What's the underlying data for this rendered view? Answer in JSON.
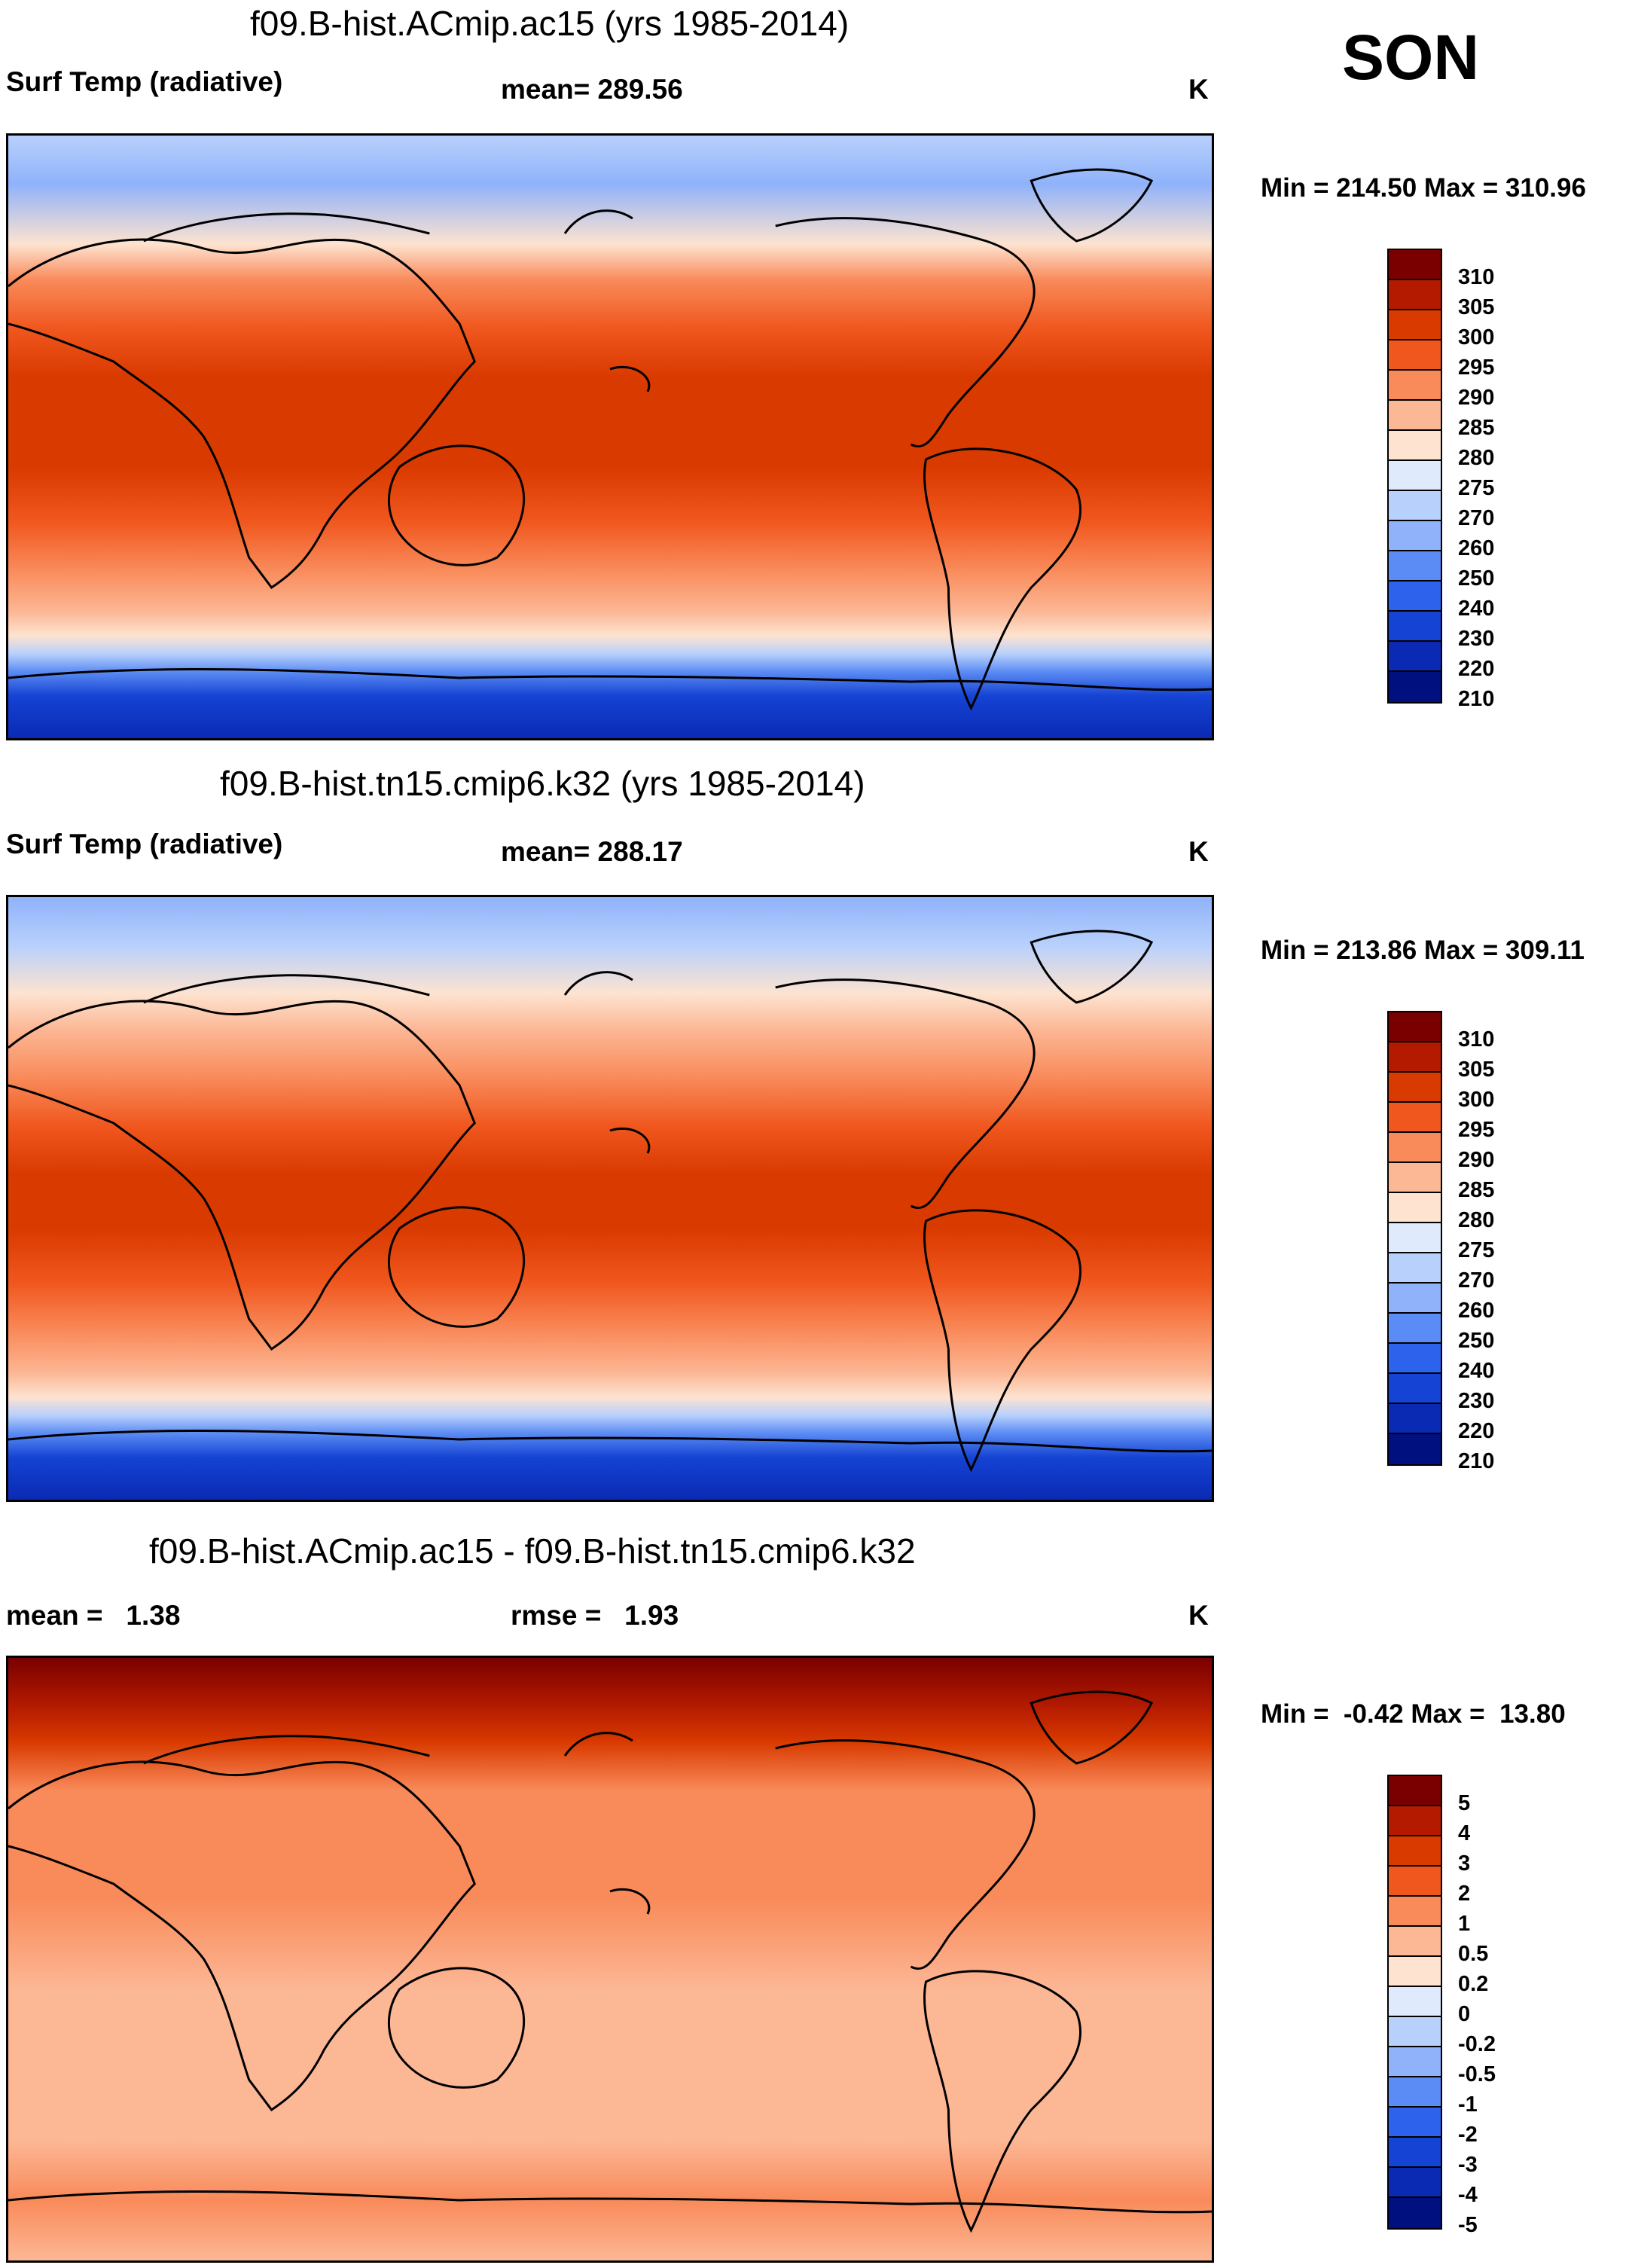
{
  "season": "SON",
  "panels": [
    {
      "id": "top",
      "title": "f09.B-hist.ACmip.ac15 (yrs 1985-2014)",
      "left_label": "Surf Temp (radiative)",
      "center_label": "mean= 289.56",
      "units": "K",
      "minmax": "Min = 214.50 Max = 310.96",
      "colorbar": {
        "colors": [
          "#7a0000",
          "#b31a00",
          "#d93a00",
          "#f0571e",
          "#f98a5a",
          "#fcb795",
          "#fde3d0",
          "#dfeafc",
          "#b8d0fc",
          "#8fb2fa",
          "#5b8bf4",
          "#2c62ec",
          "#1543d4",
          "#0a2ab3",
          "#00107e"
        ],
        "labels": [
          "310",
          "305",
          "300",
          "295",
          "290",
          "285",
          "280",
          "275",
          "270",
          "260",
          "250",
          "240",
          "230",
          "220",
          "210"
        ]
      }
    },
    {
      "id": "middle",
      "title": "f09.B-hist.tn15.cmip6.k32 (yrs 1985-2014)",
      "left_label": "Surf Temp (radiative)",
      "center_label": "mean= 288.17",
      "units": "K",
      "minmax": "Min = 213.86 Max = 309.11",
      "colorbar": {
        "colors": [
          "#7a0000",
          "#b31a00",
          "#d93a00",
          "#f0571e",
          "#f98a5a",
          "#fcb795",
          "#fde3d0",
          "#dfeafc",
          "#b8d0fc",
          "#8fb2fa",
          "#5b8bf4",
          "#2c62ec",
          "#1543d4",
          "#0a2ab3",
          "#00107e"
        ],
        "labels": [
          "310",
          "305",
          "300",
          "295",
          "290",
          "285",
          "280",
          "275",
          "270",
          "260",
          "250",
          "240",
          "230",
          "220",
          "210"
        ]
      }
    },
    {
      "id": "difference",
      "title": "f09.B-hist.ACmip.ac15 - f09.B-hist.tn15.cmip6.k32",
      "left_label": "mean =   1.38",
      "center_label": "rmse =   1.93",
      "units": "K",
      "minmax": "Min =  -0.42 Max =  13.80",
      "colorbar": {
        "colors": [
          "#7a0000",
          "#b31a00",
          "#d93a00",
          "#f0571e",
          "#f98a5a",
          "#fcb795",
          "#fde3d0",
          "#dfeafc",
          "#b8d0fc",
          "#8fb2fa",
          "#5b8bf4",
          "#2c62ec",
          "#1543d4",
          "#0a2ab3",
          "#00107e"
        ],
        "labels": [
          "5",
          "4",
          "3",
          "2",
          "1",
          "0.5",
          "0.2",
          "0",
          "-0.2",
          "-0.5",
          "-1",
          "-2",
          "-3",
          "-4",
          "-5"
        ]
      }
    }
  ]
}
